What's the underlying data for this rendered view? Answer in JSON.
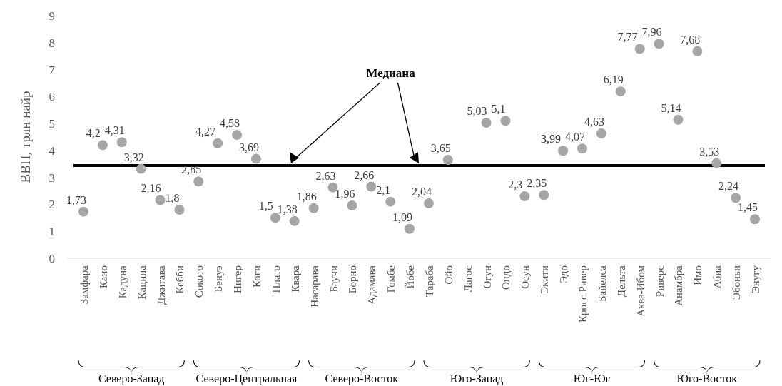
{
  "chart_data": {
    "type": "scatter",
    "ylabel": "ВВП, трлн найр",
    "categories": [
      "Замфара",
      "Кано",
      "Кадуна",
      "Кацина",
      "Джигава",
      "Кебби",
      "Сокото",
      "Бенуэ",
      "Нигер",
      "Коги",
      "Плато",
      "Квара",
      "Насарава",
      "Баучи",
      "Борно",
      "Адамава",
      "Гомбе",
      "Йобе",
      "Тараба",
      "Ойо",
      "Лагос",
      "Огун",
      "Ондо",
      "Осун",
      "Экити",
      "Эдо",
      "Кросс Ривер",
      "Байелса",
      "Дельта",
      "Аква-Ибом",
      "Риверс",
      "Анамбра",
      "Имо",
      "Абиа",
      "Эбоньи",
      "Энугу"
    ],
    "series": [
      {
        "color": "#a6a6a6",
        "values": [
          1.73,
          4.2,
          4.31,
          3.32,
          2.16,
          1.8,
          2.85,
          4.27,
          4.58,
          3.69,
          1.5,
          1.38,
          1.86,
          2.63,
          1.96,
          2.66,
          2.1,
          1.09,
          2.04,
          3.65,
          null,
          5.03,
          5.1,
          2.3,
          2.35,
          3.99,
          4.07,
          4.63,
          6.19,
          7.77,
          7.96,
          5.14,
          7.68,
          3.53,
          2.24,
          1.45
        ]
      }
    ],
    "value_labels": [
      "1,73",
      "4,2",
      "4,31",
      "3,32",
      "2,16",
      "1,8",
      "2,85",
      "4,27",
      "4,58",
      "3,69",
      "1,5",
      "1,38",
      "1,86",
      "2,63",
      "1,96",
      "2,66",
      "2,1",
      "1,09",
      "2,04",
      "3,65",
      null,
      "5,03",
      "5,1",
      "2,3",
      "2,35",
      "3,99",
      "4,07",
      "4,63",
      "6,19",
      "7,77",
      "7,96",
      "5,14",
      "7,68",
      "3,53",
      "2,24",
      "1,45"
    ],
    "ylim": [
      0,
      9
    ],
    "yticks": [
      0,
      1,
      2,
      3,
      4,
      5,
      6,
      7,
      8,
      9
    ],
    "marker": "circle",
    "ref_lines": [
      {
        "axis": "y",
        "value": 3.44,
        "label": "Медиана",
        "color": "#000000"
      }
    ],
    "annotations": [
      "Северо-Запад",
      "Северо-Центральная",
      "Северо-Восток",
      "Юго-Запад",
      "Юг-Юг",
      "Юго-Восток"
    ]
  }
}
